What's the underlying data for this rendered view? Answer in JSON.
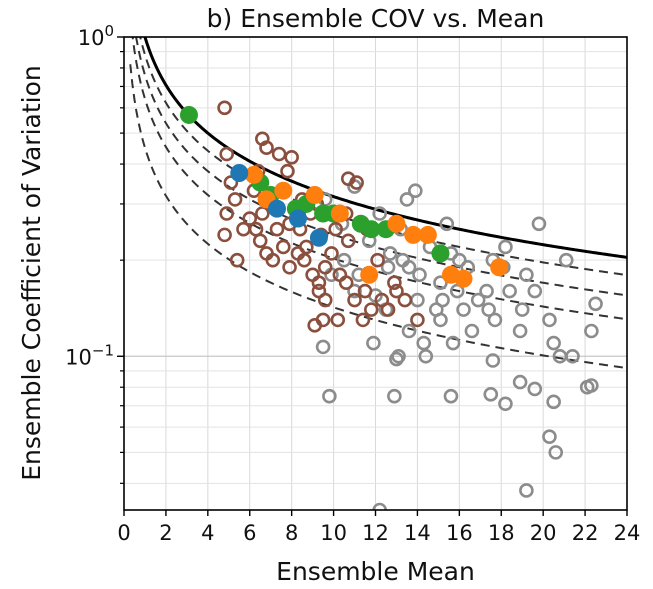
{
  "chart_data": {
    "type": "scatter",
    "title": "b) Ensemble COV vs. Mean",
    "xlabel": "Ensemble Mean",
    "ylabel": "Ensemble Coefficient of Variation",
    "xlim": [
      0,
      24
    ],
    "ylim": [
      0.033,
      1.0
    ],
    "yscale": "log",
    "grid": true,
    "x_ticks": [
      0,
      2,
      4,
      6,
      8,
      10,
      12,
      14,
      16,
      18,
      20,
      22,
      24
    ],
    "y_major_ticks": [
      {
        "value": 0.1,
        "base": "10",
        "exp": "−1"
      },
      {
        "value": 1.0,
        "base": "10",
        "exp": "0"
      }
    ],
    "y_minor_ticks": [
      0.04,
      0.05,
      0.06,
      0.07,
      0.08,
      0.09,
      0.2,
      0.3,
      0.4,
      0.5,
      0.6,
      0.7,
      0.8,
      0.9
    ],
    "curves": [
      {
        "style": "solid",
        "color": "#000000",
        "k": 1.0
      },
      {
        "style": "dashed",
        "color": "#333333",
        "k": 0.88
      },
      {
        "style": "dashed",
        "color": "#333333",
        "k": 0.76
      },
      {
        "style": "dashed",
        "color": "#333333",
        "k": 0.64
      },
      {
        "style": "dashed",
        "color": "#333333",
        "k": 0.45
      }
    ],
    "series": [
      {
        "color": "#8c8c8c",
        "marker": "open-circle",
        "points": [
          [
            9.6,
            0.31
          ],
          [
            10.4,
            0.26
          ],
          [
            11.0,
            0.34
          ],
          [
            11.7,
            0.23
          ],
          [
            12.2,
            0.28
          ],
          [
            12.7,
            0.21
          ],
          [
            13.2,
            0.25
          ],
          [
            13.5,
            0.31
          ],
          [
            13.9,
            0.33
          ],
          [
            13.3,
            0.2
          ],
          [
            13.6,
            0.19
          ],
          [
            14.1,
            0.18
          ],
          [
            14.6,
            0.22
          ],
          [
            15.1,
            0.17
          ],
          [
            15.4,
            0.26
          ],
          [
            15.6,
            0.21
          ],
          [
            15.9,
            0.16
          ],
          [
            16.4,
            0.19
          ],
          [
            16.9,
            0.15
          ],
          [
            17.4,
            0.14
          ],
          [
            17.6,
            0.2
          ],
          [
            18.1,
            0.19
          ],
          [
            18.4,
            0.16
          ],
          [
            18.9,
            0.12
          ],
          [
            19.2,
            0.18
          ],
          [
            19.6,
            0.16
          ],
          [
            19.8,
            0.26
          ],
          [
            20.3,
            0.13
          ],
          [
            20.5,
            0.11
          ],
          [
            20.8,
            0.1
          ],
          [
            21.4,
            0.1
          ],
          [
            22.1,
            0.08
          ],
          [
            22.3,
            0.081
          ],
          [
            22.5,
            0.146
          ],
          [
            11.0,
            0.16
          ],
          [
            11.9,
            0.11
          ],
          [
            12.5,
            0.14
          ],
          [
            13.0,
            0.098
          ],
          [
            13.6,
            0.12
          ],
          [
            14.4,
            0.1
          ],
          [
            15.1,
            0.13
          ],
          [
            15.7,
            0.11
          ],
          [
            16.6,
            0.12
          ],
          [
            17.6,
            0.097
          ],
          [
            18.9,
            0.083
          ],
          [
            19.6,
            0.079
          ],
          [
            17.5,
            0.076
          ],
          [
            18.2,
            0.071
          ],
          [
            20.5,
            0.072
          ],
          [
            20.3,
            0.056
          ],
          [
            20.6,
            0.05
          ],
          [
            19.2,
            0.038
          ],
          [
            12.2,
            0.033
          ],
          [
            9.8,
            0.075
          ],
          [
            12.9,
            0.075
          ],
          [
            15.6,
            0.075
          ],
          [
            9.5,
            0.107
          ],
          [
            13.1,
            0.1
          ],
          [
            14.3,
            0.11
          ],
          [
            12.0,
            0.155
          ],
          [
            14.0,
            0.15
          ],
          [
            15.2,
            0.15
          ],
          [
            16.0,
            0.2
          ],
          [
            17.3,
            0.16
          ],
          [
            19.0,
            0.14
          ],
          [
            18.2,
            0.22
          ],
          [
            17.7,
            0.13
          ],
          [
            16.2,
            0.14
          ],
          [
            21.1,
            0.2
          ],
          [
            22.3,
            0.12
          ],
          [
            10.5,
            0.2
          ],
          [
            11.2,
            0.18
          ],
          [
            9.9,
            0.18
          ],
          [
            12.6,
            0.19
          ],
          [
            14.9,
            0.14
          ]
        ]
      },
      {
        "color": "#8b4f3e",
        "marker": "open-circle",
        "points": [
          [
            4.8,
            0.6
          ],
          [
            4.9,
            0.43
          ],
          [
            5.1,
            0.35
          ],
          [
            5.3,
            0.31
          ],
          [
            4.9,
            0.28
          ],
          [
            4.8,
            0.24
          ],
          [
            6.6,
            0.48
          ],
          [
            6.8,
            0.45
          ],
          [
            7.4,
            0.43
          ],
          [
            7.8,
            0.38
          ],
          [
            8.0,
            0.42
          ],
          [
            6.4,
            0.38
          ],
          [
            6.2,
            0.33
          ],
          [
            6.6,
            0.28
          ],
          [
            6.3,
            0.25
          ],
          [
            6.5,
            0.23
          ],
          [
            6.8,
            0.21
          ],
          [
            7.1,
            0.2
          ],
          [
            7.6,
            0.22
          ],
          [
            7.9,
            0.19
          ],
          [
            8.3,
            0.21
          ],
          [
            8.6,
            0.2
          ],
          [
            9.0,
            0.18
          ],
          [
            9.3,
            0.17
          ],
          [
            9.6,
            0.19
          ],
          [
            9.9,
            0.21
          ],
          [
            10.3,
            0.18
          ],
          [
            10.6,
            0.17
          ],
          [
            11.0,
            0.15
          ],
          [
            11.5,
            0.16
          ],
          [
            11.8,
            0.14
          ],
          [
            12.3,
            0.15
          ],
          [
            12.6,
            0.14
          ],
          [
            13.0,
            0.16
          ],
          [
            13.4,
            0.15
          ],
          [
            14.0,
            0.13
          ],
          [
            8.9,
            0.28
          ],
          [
            9.4,
            0.24
          ],
          [
            10.1,
            0.25
          ],
          [
            10.7,
            0.23
          ],
          [
            8.4,
            0.25
          ],
          [
            7.9,
            0.26
          ],
          [
            7.3,
            0.25
          ],
          [
            10.7,
            0.36
          ],
          [
            11.1,
            0.35
          ],
          [
            5.4,
            0.2
          ],
          [
            5.7,
            0.25
          ],
          [
            6.0,
            0.27
          ],
          [
            7.0,
            0.3
          ],
          [
            7.6,
            0.33
          ],
          [
            8.5,
            0.31
          ],
          [
            9.2,
            0.3
          ],
          [
            9.6,
            0.15
          ],
          [
            10.2,
            0.13
          ],
          [
            11.4,
            0.13
          ],
          [
            9.1,
            0.125
          ],
          [
            9.3,
            0.16
          ],
          [
            8.7,
            0.22
          ],
          [
            12.1,
            0.2
          ],
          [
            12.9,
            0.17
          ],
          [
            10.6,
            0.28
          ],
          [
            11.6,
            0.25
          ],
          [
            9.5,
            0.13
          ]
        ]
      },
      {
        "color": "#2ca02c",
        "marker": "filled-circle",
        "points": [
          [
            3.1,
            0.57
          ],
          [
            6.5,
            0.35
          ],
          [
            7.0,
            0.32
          ],
          [
            8.2,
            0.29
          ],
          [
            8.7,
            0.3
          ],
          [
            9.5,
            0.28
          ],
          [
            10.0,
            0.28
          ],
          [
            11.3,
            0.26
          ],
          [
            11.8,
            0.25
          ],
          [
            12.5,
            0.25
          ],
          [
            15.1,
            0.21
          ]
        ]
      },
      {
        "color": "#ff7f0e",
        "marker": "filled-circle",
        "points": [
          [
            6.2,
            0.37
          ],
          [
            6.8,
            0.31
          ],
          [
            7.6,
            0.33
          ],
          [
            9.1,
            0.32
          ],
          [
            10.3,
            0.28
          ],
          [
            11.7,
            0.18
          ],
          [
            13.0,
            0.26
          ],
          [
            13.8,
            0.24
          ],
          [
            14.5,
            0.24
          ],
          [
            15.6,
            0.18
          ],
          [
            16.2,
            0.175
          ],
          [
            17.9,
            0.19
          ]
        ]
      },
      {
        "color": "#1f77b4",
        "marker": "filled-circle",
        "points": [
          [
            5.5,
            0.375
          ],
          [
            7.3,
            0.29
          ],
          [
            8.3,
            0.27
          ],
          [
            9.3,
            0.235
          ]
        ]
      }
    ]
  }
}
